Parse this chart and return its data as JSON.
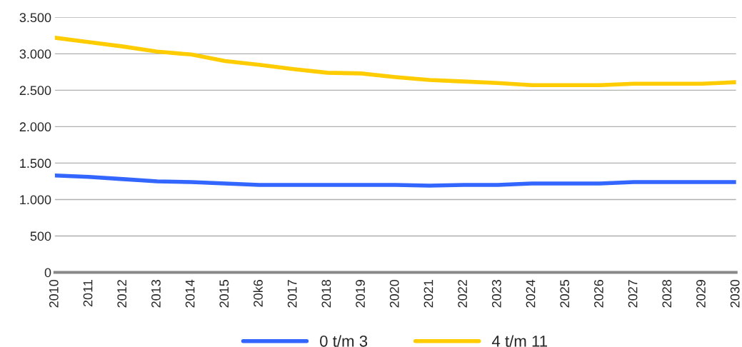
{
  "chart_data": {
    "type": "line",
    "categories": [
      "2010",
      "2011",
      "2012",
      "2013",
      "2014",
      "2015",
      "20k6",
      "2017",
      "2018",
      "2019",
      "2020",
      "2021",
      "2022",
      "2023",
      "2024",
      "2025",
      "2026",
      "2027",
      "2028",
      "2029",
      "2030"
    ],
    "series": [
      {
        "name": "0 t/m 3",
        "color": "#3366ff",
        "values": [
          1330,
          1310,
          1280,
          1250,
          1240,
          1220,
          1200,
          1200,
          1200,
          1200,
          1200,
          1190,
          1200,
          1200,
          1220,
          1220,
          1220,
          1240,
          1240,
          1240,
          1240
        ]
      },
      {
        "name": "4 t/m 11",
        "color": "#ffcc00",
        "values": [
          3220,
          3160,
          3100,
          3030,
          2990,
          2900,
          2850,
          2790,
          2740,
          2730,
          2680,
          2640,
          2620,
          2600,
          2570,
          2570,
          2570,
          2590,
          2590,
          2590,
          2610
        ]
      }
    ],
    "ylim": [
      0,
      3500
    ],
    "yticks": [
      0,
      {
        "value": 500,
        "label": "500"
      },
      {
        "value": 1000,
        "label": "1.000"
      },
      {
        "value": 1500,
        "label": "1.500"
      },
      {
        "value": 2000,
        "label": "2.000"
      },
      {
        "value": 2500,
        "label": "2.500"
      },
      {
        "value": 3000,
        "label": "3.000"
      },
      {
        "value": 3500,
        "label": "3.500"
      }
    ],
    "grid": "y",
    "legend": "bottom",
    "marker": "none",
    "line_style": "solid"
  }
}
